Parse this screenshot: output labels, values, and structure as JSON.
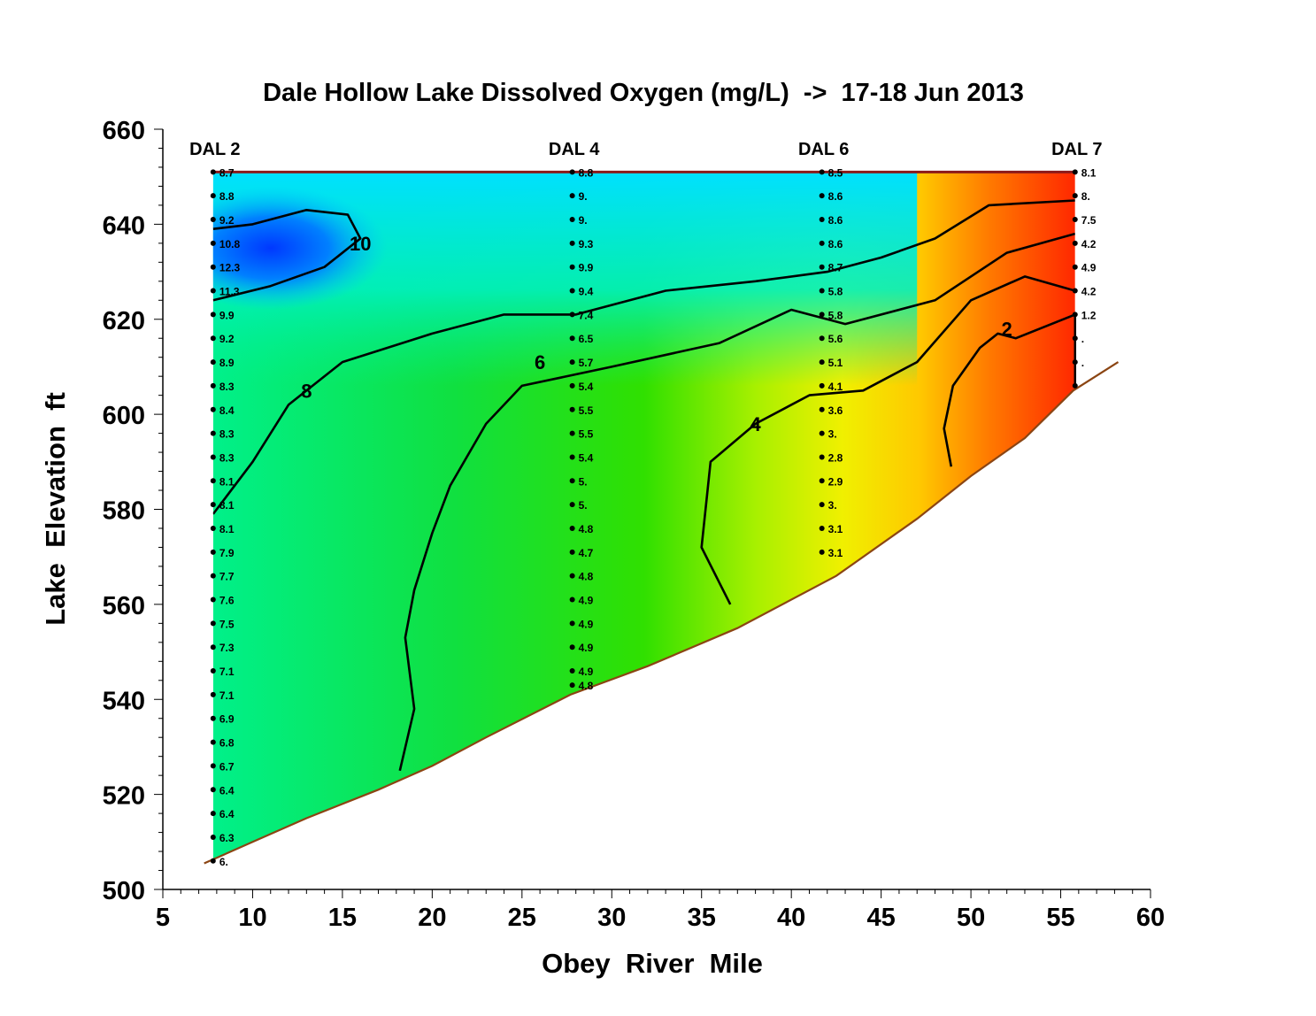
{
  "chart_data": {
    "type": "heatmap",
    "title": "Dale Hollow Lake Dissolved Oxygen (mg/L)  ->  17-18 Jun 2013",
    "xlabel": "Obey  River  Mile",
    "ylabel": "Lake  Elevation  ft",
    "xlim": [
      5,
      60
    ],
    "ylim": [
      500,
      660
    ],
    "x_ticks": [
      5,
      10,
      15,
      20,
      25,
      30,
      35,
      40,
      45,
      50,
      55,
      60
    ],
    "y_ticks": [
      500,
      520,
      540,
      560,
      580,
      600,
      620,
      640,
      660
    ],
    "grid": false,
    "surface_elevation": 651,
    "colors": {
      "surface_line": "#8b1a1a",
      "bottom_line": "#8b4513",
      "scale": [
        "#ff2000",
        "#ff8000",
        "#ffd000",
        "#ffff00",
        "#c8ff00",
        "#80ff00",
        "#20e800",
        "#00ff90",
        "#00ffe0",
        "#00d8ff",
        "#0050ff"
      ]
    },
    "bottom_profile": [
      {
        "x": 7.3,
        "y": 505.5
      },
      {
        "x": 10,
        "y": 510
      },
      {
        "x": 13,
        "y": 515
      },
      {
        "x": 17,
        "y": 521
      },
      {
        "x": 20,
        "y": 526
      },
      {
        "x": 23,
        "y": 532
      },
      {
        "x": 27.7,
        "y": 541
      },
      {
        "x": 32,
        "y": 547
      },
      {
        "x": 37,
        "y": 555
      },
      {
        "x": 42.5,
        "y": 566
      },
      {
        "x": 47,
        "y": 578
      },
      {
        "x": 50,
        "y": 587
      },
      {
        "x": 53,
        "y": 595
      },
      {
        "x": 55.7,
        "y": 605
      },
      {
        "x": 58.2,
        "y": 611
      }
    ],
    "contours": [
      {
        "label": "10",
        "value": 10,
        "label_at": {
          "x": 16,
          "y": 636
        },
        "points": [
          {
            "x": 7.8,
            "y": 624
          },
          {
            "x": 11,
            "y": 627
          },
          {
            "x": 14,
            "y": 631
          },
          {
            "x": 16,
            "y": 637
          },
          {
            "x": 15.3,
            "y": 642
          },
          {
            "x": 13,
            "y": 643
          },
          {
            "x": 10,
            "y": 640
          },
          {
            "x": 7.8,
            "y": 639
          }
        ]
      },
      {
        "label": "8",
        "value": 8,
        "label_at": {
          "x": 13,
          "y": 605
        },
        "points": [
          {
            "x": 7.8,
            "y": 579
          },
          {
            "x": 10,
            "y": 590
          },
          {
            "x": 12,
            "y": 602
          },
          {
            "x": 15,
            "y": 611
          },
          {
            "x": 20,
            "y": 617
          },
          {
            "x": 24,
            "y": 621
          },
          {
            "x": 28,
            "y": 621
          },
          {
            "x": 33,
            "y": 626
          },
          {
            "x": 38,
            "y": 628
          },
          {
            "x": 42,
            "y": 630
          },
          {
            "x": 45,
            "y": 633
          },
          {
            "x": 48,
            "y": 637
          },
          {
            "x": 51,
            "y": 644
          },
          {
            "x": 55.8,
            "y": 645
          }
        ]
      },
      {
        "label": "6",
        "value": 6,
        "label_at": {
          "x": 26,
          "y": 611
        },
        "points": [
          {
            "x": 18.2,
            "y": 525
          },
          {
            "x": 19,
            "y": 538
          },
          {
            "x": 18.5,
            "y": 553
          },
          {
            "x": 19,
            "y": 563
          },
          {
            "x": 20,
            "y": 575
          },
          {
            "x": 21,
            "y": 585
          },
          {
            "x": 23,
            "y": 598
          },
          {
            "x": 25,
            "y": 606
          },
          {
            "x": 30,
            "y": 610
          },
          {
            "x": 36,
            "y": 615
          },
          {
            "x": 40,
            "y": 622
          },
          {
            "x": 43,
            "y": 619
          },
          {
            "x": 48,
            "y": 624
          },
          {
            "x": 52,
            "y": 634
          },
          {
            "x": 55.8,
            "y": 638
          }
        ]
      },
      {
        "label": "4",
        "value": 4,
        "label_at": {
          "x": 38,
          "y": 598
        },
        "points": [
          {
            "x": 36.6,
            "y": 560
          },
          {
            "x": 35,
            "y": 572
          },
          {
            "x": 35.5,
            "y": 590
          },
          {
            "x": 38,
            "y": 598
          },
          {
            "x": 41,
            "y": 604
          },
          {
            "x": 44,
            "y": 605
          },
          {
            "x": 47,
            "y": 611
          },
          {
            "x": 50,
            "y": 624
          },
          {
            "x": 53,
            "y": 629
          },
          {
            "x": 55.8,
            "y": 626
          }
        ]
      },
      {
        "label": "2",
        "value": 2,
        "label_at": {
          "x": 52,
          "y": 618
        },
        "points": [
          {
            "x": 48.9,
            "y": 589
          },
          {
            "x": 48.5,
            "y": 597
          },
          {
            "x": 49,
            "y": 606
          },
          {
            "x": 50.5,
            "y": 614
          },
          {
            "x": 51.5,
            "y": 617
          },
          {
            "x": 52.5,
            "y": 616
          },
          {
            "x": 55.8,
            "y": 621
          }
        ]
      }
    ],
    "stations": [
      {
        "name": "DAL 2",
        "x": 7.8,
        "profile": [
          {
            "y": 651,
            "value": "8.7"
          },
          {
            "y": 646,
            "value": "8.8"
          },
          {
            "y": 641,
            "value": "9.2"
          },
          {
            "y": 636,
            "value": "10.8"
          },
          {
            "y": 631,
            "value": "12.3"
          },
          {
            "y": 626,
            "value": "11.3"
          },
          {
            "y": 621,
            "value": "9.9"
          },
          {
            "y": 616,
            "value": "9.2"
          },
          {
            "y": 611,
            "value": "8.9"
          },
          {
            "y": 606,
            "value": "8.3"
          },
          {
            "y": 601,
            "value": "8.4"
          },
          {
            "y": 596,
            "value": "8.3"
          },
          {
            "y": 591,
            "value": "8.3"
          },
          {
            "y": 586,
            "value": "8.1"
          },
          {
            "y": 581,
            "value": "8.1"
          },
          {
            "y": 576,
            "value": "8.1"
          },
          {
            "y": 571,
            "value": "7.9"
          },
          {
            "y": 566,
            "value": "7.7"
          },
          {
            "y": 561,
            "value": "7.6"
          },
          {
            "y": 556,
            "value": "7.5"
          },
          {
            "y": 551,
            "value": "7.3"
          },
          {
            "y": 546,
            "value": "7.1"
          },
          {
            "y": 541,
            "value": "7.1"
          },
          {
            "y": 536,
            "value": "6.9"
          },
          {
            "y": 531,
            "value": "6.8"
          },
          {
            "y": 526,
            "value": "6.7"
          },
          {
            "y": 521,
            "value": "6.4"
          },
          {
            "y": 516,
            "value": "6.4"
          },
          {
            "y": 511,
            "value": "6.3"
          },
          {
            "y": 506,
            "value": "6."
          }
        ]
      },
      {
        "name": "DAL 4",
        "x": 27.8,
        "profile": [
          {
            "y": 651,
            "value": "8.8"
          },
          {
            "y": 646,
            "value": "9."
          },
          {
            "y": 641,
            "value": "9."
          },
          {
            "y": 636,
            "value": "9.3"
          },
          {
            "y": 631,
            "value": "9.9"
          },
          {
            "y": 626,
            "value": "9.4"
          },
          {
            "y": 621,
            "value": "7.4"
          },
          {
            "y": 616,
            "value": "6.5"
          },
          {
            "y": 611,
            "value": "5.7"
          },
          {
            "y": 606,
            "value": "5.4"
          },
          {
            "y": 601,
            "value": "5.5"
          },
          {
            "y": 596,
            "value": "5.5"
          },
          {
            "y": 591,
            "value": "5.4"
          },
          {
            "y": 586,
            "value": "5."
          },
          {
            "y": 581,
            "value": "5."
          },
          {
            "y": 576,
            "value": "4.8"
          },
          {
            "y": 571,
            "value": "4.7"
          },
          {
            "y": 566,
            "value": "4.8"
          },
          {
            "y": 561,
            "value": "4.9"
          },
          {
            "y": 556,
            "value": "4.9"
          },
          {
            "y": 551,
            "value": "4.9"
          },
          {
            "y": 546,
            "value": "4.9"
          },
          {
            "y": 543,
            "value": "4.8"
          }
        ]
      },
      {
        "name": "DAL 6",
        "x": 41.7,
        "profile": [
          {
            "y": 651,
            "value": "8.5"
          },
          {
            "y": 646,
            "value": "8.6"
          },
          {
            "y": 641,
            "value": "8.6"
          },
          {
            "y": 636,
            "value": "8.6"
          },
          {
            "y": 631,
            "value": "8.7"
          },
          {
            "y": 626,
            "value": "5.8"
          },
          {
            "y": 621,
            "value": "5.8"
          },
          {
            "y": 616,
            "value": "5.6"
          },
          {
            "y": 611,
            "value": "5.1"
          },
          {
            "y": 606,
            "value": "4.1"
          },
          {
            "y": 601,
            "value": "3.6"
          },
          {
            "y": 596,
            "value": "3."
          },
          {
            "y": 591,
            "value": "2.8"
          },
          {
            "y": 586,
            "value": "2.9"
          },
          {
            "y": 581,
            "value": "3."
          },
          {
            "y": 576,
            "value": "3.1"
          },
          {
            "y": 571,
            "value": "3.1"
          }
        ]
      },
      {
        "name": "DAL 7",
        "x": 55.8,
        "profile": [
          {
            "y": 651,
            "value": "8.1"
          },
          {
            "y": 646,
            "value": "8."
          },
          {
            "y": 641,
            "value": "7.5"
          },
          {
            "y": 636,
            "value": "4.2"
          },
          {
            "y": 631,
            "value": "4.9"
          },
          {
            "y": 626,
            "value": "4.2"
          },
          {
            "y": 621,
            "value": "1.2"
          },
          {
            "y": 616,
            "value": "."
          },
          {
            "y": 611,
            "value": "."
          },
          {
            "y": 606,
            "value": ""
          }
        ]
      }
    ]
  }
}
